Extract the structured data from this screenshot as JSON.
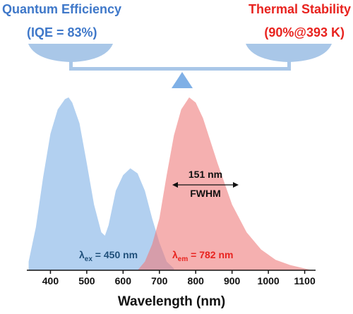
{
  "chart_data": {
    "type": "area",
    "titles": {
      "left": [
        "Quantum Efficiency",
        "(IQE = 83%)"
      ],
      "right": [
        "Thermal Stability",
        "(90%@393 K)"
      ]
    },
    "left_color": "#3f78c9",
    "right_color": "#e8231f",
    "x_label": "Wavelength (nm)",
    "xlim": [
      335,
      1130
    ],
    "xticks": [
      400,
      500,
      600,
      700,
      800,
      900,
      1000,
      1100
    ],
    "ylim": [
      0,
      1
    ],
    "series": [
      {
        "color": "#7fb0e6",
        "x": [
          340,
          360,
          380,
          400,
          420,
          440,
          450,
          460,
          480,
          500,
          520,
          540,
          550,
          560,
          580,
          600,
          620,
          640,
          660,
          680,
          700,
          720,
          740
        ],
        "values": [
          0.05,
          0.25,
          0.54,
          0.79,
          0.93,
          0.99,
          1.0,
          0.97,
          0.85,
          0.62,
          0.38,
          0.22,
          0.2,
          0.26,
          0.46,
          0.55,
          0.59,
          0.56,
          0.46,
          0.3,
          0.16,
          0.05,
          0.01
        ]
      },
      {
        "color": "#ef7b7b",
        "x": [
          640,
          660,
          680,
          700,
          720,
          740,
          760,
          782,
          800,
          820,
          840,
          860,
          880,
          900,
          940,
          980,
          1020,
          1060,
          1100,
          1120
        ],
        "values": [
          0,
          0.05,
          0.15,
          0.3,
          0.55,
          0.78,
          0.93,
          1.0,
          0.97,
          0.88,
          0.75,
          0.62,
          0.5,
          0.38,
          0.22,
          0.12,
          0.06,
          0.03,
          0.01,
          0
        ]
      }
    ],
    "annotations": {
      "fwhm_value": "151 nm",
      "fwhm_label": "FWHM",
      "excitation": {
        "symbol": "λ",
        "sub": "ex",
        "text": " = 450 nm",
        "color": "#1f4f7a"
      },
      "emission": {
        "symbol": "λ",
        "sub": "em",
        "text": " = 782 nm",
        "color": "#e8231f"
      }
    }
  }
}
